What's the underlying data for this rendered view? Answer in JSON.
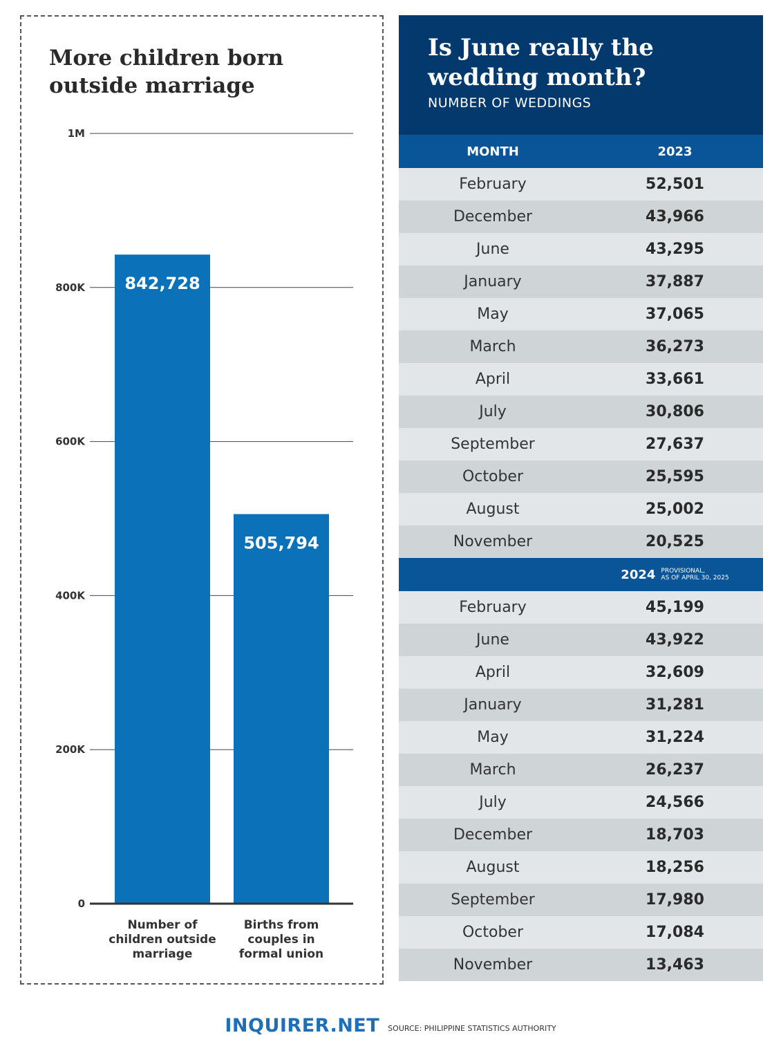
{
  "chart": {
    "title": "More children born outside marriage"
  },
  "chart_data": {
    "type": "bar",
    "categories": [
      "Number of children outside marriage",
      "Births from couples in formal union"
    ],
    "category_lines": [
      [
        "Number of",
        "children outside",
        "marriage"
      ],
      [
        "Births from",
        "couples in",
        "formal union"
      ]
    ],
    "values": [
      842728,
      505794
    ],
    "value_labels": [
      "842,728",
      "505,794"
    ],
    "ylim": [
      0,
      1000000
    ],
    "yticks": [
      0,
      200000,
      400000,
      600000,
      800000,
      1000000
    ],
    "ytick_labels": [
      "0",
      "200K",
      "400K",
      "600K",
      "800K",
      "1M"
    ],
    "grid": true,
    "bar_color": "#0b72b9"
  },
  "table": {
    "title": "Is June really the wedding month?",
    "subtitle": "NUMBER OF WEDDINGS",
    "col_month": "MONTH",
    "year1": "2023",
    "rows1": [
      {
        "month": "February",
        "value": "52,501"
      },
      {
        "month": "December",
        "value": "43,966"
      },
      {
        "month": "June",
        "value": "43,295"
      },
      {
        "month": "January",
        "value": "37,887"
      },
      {
        "month": "May",
        "value": "37,065"
      },
      {
        "month": "March",
        "value": "36,273"
      },
      {
        "month": "April",
        "value": "33,661"
      },
      {
        "month": "July",
        "value": "30,806"
      },
      {
        "month": "September",
        "value": "27,637"
      },
      {
        "month": "October",
        "value": "25,595"
      },
      {
        "month": "August",
        "value": "25,002"
      },
      {
        "month": "November",
        "value": "20,525"
      }
    ],
    "year2": "2024",
    "year2_note_line1": "PROVISIONAL,",
    "year2_note_line2": "AS OF APRIL 30, 2025",
    "rows2": [
      {
        "month": "February",
        "value": "45,199"
      },
      {
        "month": "June",
        "value": "43,922"
      },
      {
        "month": "April",
        "value": "32,609"
      },
      {
        "month": "January",
        "value": "31,281"
      },
      {
        "month": "May",
        "value": "31,224"
      },
      {
        "month": "March",
        "value": "26,237"
      },
      {
        "month": "July",
        "value": "24,566"
      },
      {
        "month": "December",
        "value": "18,703"
      },
      {
        "month": "August",
        "value": "18,256"
      },
      {
        "month": "September",
        "value": "17,980"
      },
      {
        "month": "October",
        "value": "17,084"
      },
      {
        "month": "November",
        "value": "13,463"
      }
    ],
    "colors": {
      "header": "#03396c",
      "col_header": "#0a5597",
      "row_light": "#e3e6e8",
      "row_dark": "#cfd4d6"
    }
  },
  "footer": {
    "brand": "INQUIRER.NET",
    "source": "SOURCE: PHILIPPINE STATISTICS AUTHORITY"
  }
}
